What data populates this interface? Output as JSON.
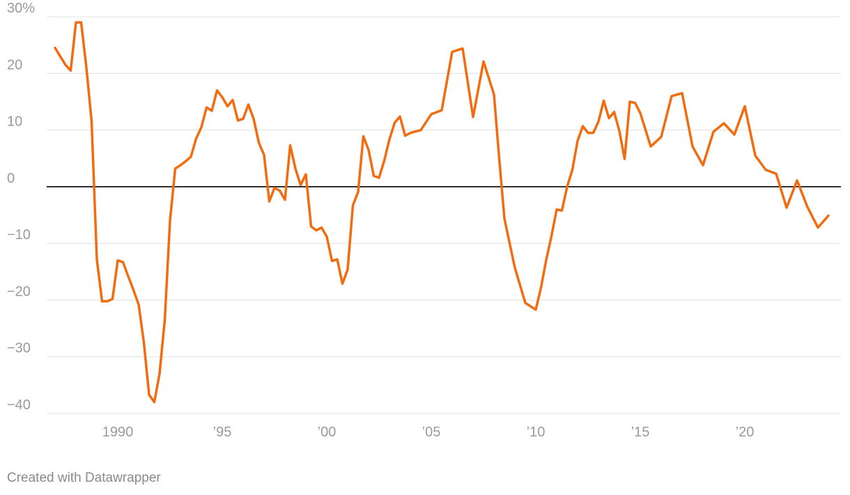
{
  "chart_data": {
    "type": "line",
    "title": "",
    "xlabel": "",
    "ylabel": "",
    "ylim": [
      -40,
      30
    ],
    "xlim": [
      1986.6,
      2024.6
    ],
    "y_ticks": [
      30,
      20,
      10,
      0,
      -10,
      -20,
      -30,
      -40
    ],
    "y_tick_labels": [
      "30%",
      "20",
      "10",
      "0",
      "−10",
      "−20",
      "−30",
      "−40"
    ],
    "x_ticks": [
      1990,
      1995,
      2000,
      2005,
      2010,
      2015,
      2020
    ],
    "x_tick_labels": [
      "1990",
      "’95",
      "’00",
      "’05",
      "’10",
      "’15",
      "’20"
    ],
    "grid": true,
    "line_color": "#f26b0f",
    "zero_line_color": "#000000",
    "series": [
      {
        "x": [
          1987.0,
          1987.25,
          1987.5,
          1987.75,
          1988.0,
          1988.25,
          1988.5,
          1988.75,
          1989.0,
          1989.25,
          1989.5,
          1989.75,
          1990.0,
          1990.25,
          1990.5,
          1990.75,
          1991.0,
          1991.25,
          1991.5,
          1991.75,
          1992.0,
          1992.25,
          1992.5,
          1992.75,
          1993.0,
          1993.25,
          1993.5,
          1993.75,
          1994.0,
          1994.25,
          1994.5,
          1994.75,
          1995.0,
          1995.25,
          1995.5,
          1995.75,
          1996.0,
          1996.25,
          1996.5,
          1996.75,
          1997.0,
          1997.25,
          1997.5,
          1997.75,
          1998.0,
          1998.25,
          1998.5,
          1998.75,
          1999.0,
          1999.25,
          1999.5,
          1999.75,
          2000.0,
          2000.25,
          2000.5,
          2000.75,
          2001.0,
          2001.25,
          2001.5,
          2001.75,
          2002.0,
          2002.25,
          2002.5,
          2002.75,
          2003.0,
          2003.25,
          2003.5,
          2003.75,
          2004.0,
          2004.5,
          2005.0,
          2005.5,
          2006.0,
          2006.5,
          2007.0,
          2007.5,
          2008.0,
          2008.25,
          2008.5,
          2008.75,
          2009.0,
          2009.5,
          2010.0,
          2010.25,
          2010.5,
          2010.75,
          2011.0,
          2011.25,
          2011.5,
          2011.75,
          2012.0,
          2012.25,
          2012.5,
          2012.75,
          2013.0,
          2013.25,
          2013.5,
          2013.75,
          2014.0,
          2014.25,
          2014.5,
          2014.75,
          2015.0,
          2015.5,
          2016.0,
          2016.5,
          2017.0,
          2017.5,
          2018.0,
          2018.5,
          2019.0,
          2019.5,
          2020.0,
          2020.5,
          2021.0,
          2021.5,
          2022.0,
          2022.5,
          2023.0,
          2023.5,
          2024.0
        ],
        "y": [
          24.5,
          23.0,
          21.5,
          20.5,
          29.0,
          29.0,
          21.0,
          11.5,
          -12.8,
          -20.2,
          -20.2,
          -19.8,
          -13.0,
          -13.3,
          -15.8,
          -18.2,
          -20.8,
          -27.5,
          -36.7,
          -38.0,
          -33.0,
          -23.5,
          -6.0,
          3.2,
          3.8,
          4.5,
          5.3,
          8.5,
          10.5,
          14.0,
          13.4,
          17.0,
          15.8,
          14.2,
          15.3,
          11.7,
          12.0,
          14.5,
          12.0,
          7.8,
          5.6,
          -2.6,
          -0.2,
          -0.7,
          -2.3,
          7.3,
          3.2,
          0.3,
          2.2,
          -7.0,
          -7.7,
          -7.2,
          -8.8,
          -13.1,
          -12.8,
          -17.1,
          -14.6,
          -3.3,
          -0.9,
          8.9,
          6.5,
          1.9,
          1.6,
          4.6,
          8.4,
          11.3,
          12.4,
          9.0,
          9.5,
          10.0,
          12.8,
          13.5,
          23.8,
          24.4,
          12.3,
          22.1,
          16.3,
          5.0,
          -5.6,
          -10.0,
          -14.3,
          -20.5,
          -21.7,
          -17.8,
          -12.9,
          -8.7,
          -4.0,
          -4.2,
          0.0,
          3.0,
          8.1,
          10.7,
          9.5,
          9.5,
          11.5,
          15.2,
          12.1,
          13.2,
          9.8,
          4.9,
          15.0,
          14.8,
          13.0,
          7.1,
          8.8,
          16.0,
          16.5,
          7.1,
          3.8,
          9.7,
          11.2,
          9.2,
          14.2,
          5.5,
          3.0,
          2.3,
          -3.7,
          1.1,
          -3.6,
          -7.2,
          -5.1
        ]
      }
    ]
  },
  "footer": {
    "credit": "Created with Datawrapper"
  }
}
